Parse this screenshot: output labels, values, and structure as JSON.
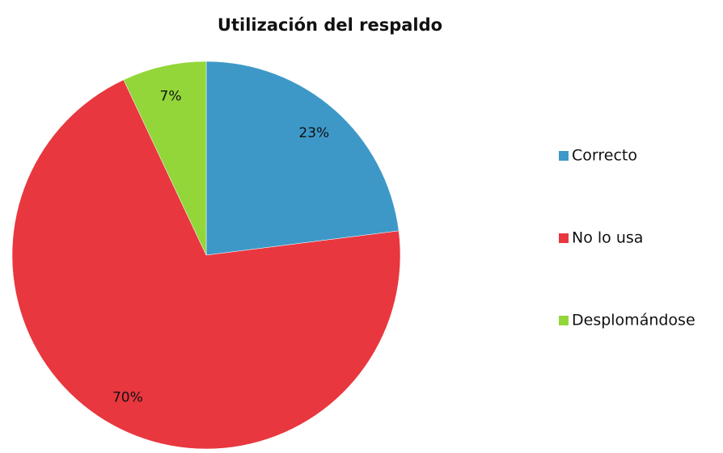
{
  "chart_data": {
    "type": "pie",
    "title": "Utilización del respaldo",
    "categories": [
      "Correcto",
      "No lo usa",
      "Desplomándose"
    ],
    "values": [
      23,
      70,
      7
    ],
    "value_labels": [
      "23%",
      "70%",
      "7%"
    ],
    "colors": [
      "#3d98c8",
      "#e8373e",
      "#92d63a"
    ],
    "legend": "right"
  }
}
